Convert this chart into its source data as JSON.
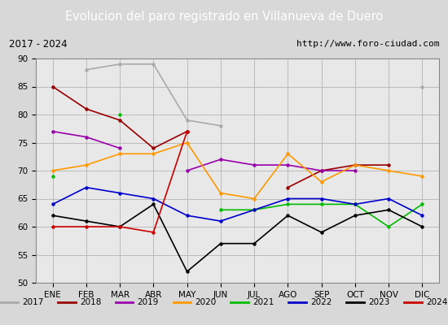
{
  "title": "Evolucion del paro registrado en Villanueva de Duero",
  "subtitle_left": "2017 - 2024",
  "subtitle_right": "http://www.foro-ciudad.com",
  "months": [
    "ENE",
    "FEB",
    "MAR",
    "ABR",
    "MAY",
    "JUN",
    "JUL",
    "AGO",
    "SEP",
    "OCT",
    "NOV",
    "DIC"
  ],
  "ylim": [
    50,
    90
  ],
  "yticks": [
    50,
    55,
    60,
    65,
    70,
    75,
    80,
    85,
    90
  ],
  "series_order": [
    "2017",
    "2018",
    "2019",
    "2020",
    "2021",
    "2022",
    "2023",
    "2024"
  ],
  "colors": {
    "2017": "#aaaaaa",
    "2018": "#990000",
    "2019": "#9900aa",
    "2020": "#ff9900",
    "2021": "#00bb00",
    "2022": "#0000cc",
    "2023": "#000000",
    "2024": "#cc0000"
  },
  "series_data": {
    "2017": [
      null,
      88,
      89,
      89,
      79,
      78,
      null,
      null,
      null,
      null,
      null,
      85
    ],
    "2018": [
      85,
      81,
      79,
      74,
      77,
      null,
      null,
      67,
      70,
      71,
      71,
      null
    ],
    "2019": [
      77,
      76,
      74,
      null,
      70,
      72,
      71,
      71,
      70,
      70,
      null,
      null
    ],
    "2020": [
      70,
      71,
      73,
      73,
      75,
      66,
      65,
      73,
      68,
      71,
      70,
      69
    ],
    "2021": [
      69,
      null,
      80,
      null,
      null,
      63,
      63,
      64,
      64,
      64,
      60,
      64
    ],
    "2022": [
      64,
      67,
      66,
      65,
      62,
      61,
      63,
      65,
      65,
      64,
      65,
      62
    ],
    "2023": [
      62,
      61,
      60,
      64,
      52,
      57,
      57,
      62,
      59,
      62,
      63,
      60
    ],
    "2024": [
      60,
      60,
      60,
      59,
      77,
      null,
      null,
      null,
      null,
      null,
      null,
      null
    ]
  },
  "bg_color": "#d8d8d8",
  "plot_bg_color": "#e8e8e8",
  "title_bg_color": "#4466bb",
  "title_color": "#ffffff",
  "subtitle_bg_color": "#ffffff",
  "grid_color": "#bbbbbb",
  "legend_bg_color": "#ffffff",
  "title_fontsize": 10.5,
  "subtitle_fontsize": 8.5,
  "tick_fontsize": 7.5,
  "legend_fontsize": 7.5,
  "linewidth": 1.2
}
